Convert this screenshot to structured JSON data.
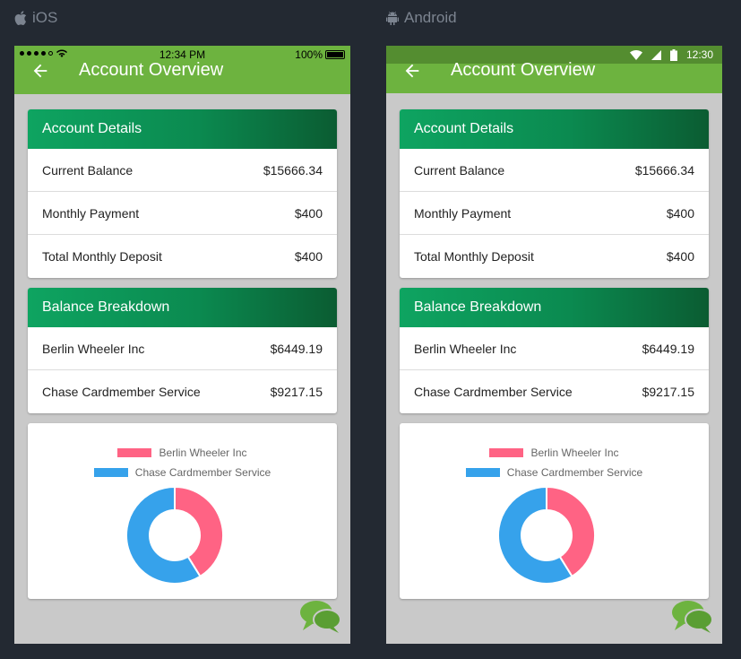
{
  "platforms": [
    {
      "id": "ios",
      "platform_label": "iOS",
      "status": {
        "time": "12:34 PM",
        "battery": "100%"
      },
      "appbar": {
        "title": "Account Overview"
      }
    },
    {
      "id": "android",
      "platform_label": "Android",
      "status": {
        "time": "12:30"
      },
      "appbar": {
        "title": "Account Overview"
      }
    }
  ],
  "account_details": {
    "header": "Account Details",
    "rows": [
      {
        "label": "Current Balance",
        "value": "$15666.34"
      },
      {
        "label": "Monthly Payment",
        "value": "$400"
      },
      {
        "label": "Total Monthly Deposit",
        "value": "$400"
      }
    ]
  },
  "balance_breakdown": {
    "header": "Balance Breakdown",
    "rows": [
      {
        "label": "Berlin Wheeler Inc",
        "value": "$6449.19"
      },
      {
        "label": "Chase Cardmember Service",
        "value": "$9217.15"
      }
    ]
  },
  "chart_data": {
    "type": "pie",
    "categories": [
      "Berlin Wheeler Inc",
      "Chase Cardmember Service"
    ],
    "values": [
      6449.19,
      9217.15
    ],
    "colors": [
      "#ff6384",
      "#36a2eb"
    ],
    "legend": "top"
  },
  "icons": {
    "platform_ios": "apple-icon",
    "platform_android": "android-icon",
    "back": "arrow-left-icon",
    "chat": "chat-bubbles-icon"
  },
  "colors": {
    "appbar": "#6db33f",
    "android_status": "#548d30",
    "card_header_start": "#0ea461",
    "card_header_end": "#0b5c32",
    "background": "#232932",
    "phone_bg": "#c9c9c9"
  }
}
